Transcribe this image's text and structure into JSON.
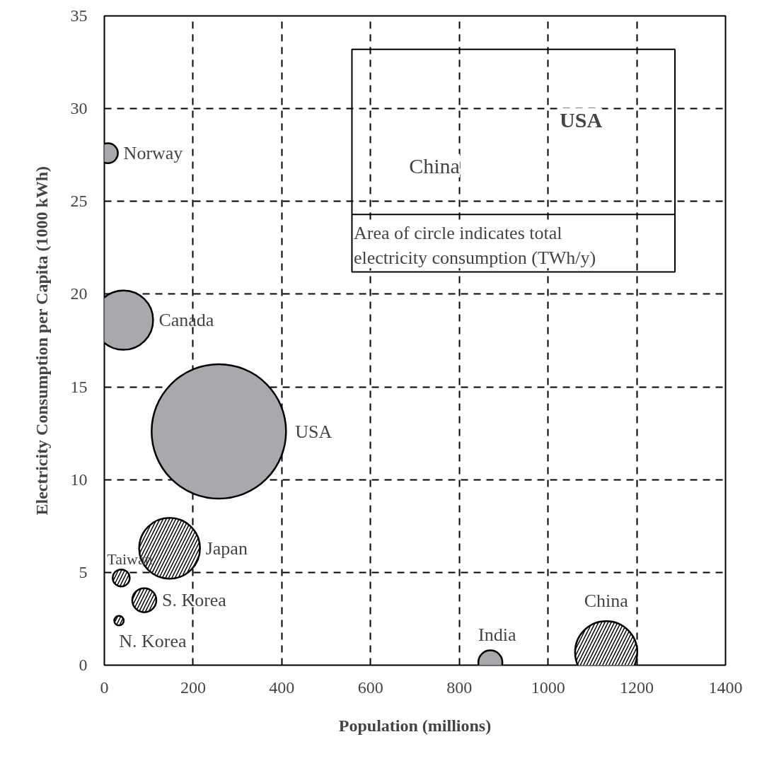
{
  "chart_data": {
    "type": "bubble",
    "xlabel": "Population (millions)",
    "ylabel": "Electricity Consumption per Capita (1000 kWh)",
    "xlim": [
      0,
      1400
    ],
    "ylim": [
      0,
      35
    ],
    "xticks": [
      0,
      200,
      400,
      600,
      800,
      1000,
      1200,
      1400
    ],
    "yticks": [
      0,
      5,
      10,
      15,
      20,
      25,
      30,
      35
    ],
    "grid": true,
    "series": [
      {
        "color": "#a7a9ac",
        "x": [
          8,
          43,
          258,
          870
        ],
        "values": [
          27.6,
          18.6,
          12.6,
          0.15
        ],
        "sizes": [
          0.022,
          0.195,
          1,
          0.032
        ]
      },
      {
        "color": "#ffffff",
        "x": [
          147,
          38,
          90,
          33,
          1131
        ],
        "values": [
          6.3,
          4.7,
          3.5,
          2.4,
          0.7
        ],
        "sizes": [
          0.205,
          0.016,
          0.032,
          0.005,
          0.214
        ]
      }
    ],
    "annotations": [
      "China",
      "USA",
      "Area of circle indicates total electricity consumption (TWh/y)",
      "USA",
      {
        "text": "Norway",
        "x": 8,
        "y": 27.6
      },
      {
        "text": "Canada",
        "x": 43,
        "y": 18.6
      },
      {
        "text": "India",
        "x": 870,
        "y": 0.15
      },
      {
        "text": "Japan",
        "x": 147,
        "y": 6.3
      },
      {
        "text": "Taiwan",
        "x": 38,
        "y": 4.7
      },
      {
        "text": "S. Korea",
        "x": 90,
        "y": 3.5
      },
      {
        "text": "N. Korea",
        "x": 33,
        "y": 2.4
      },
      {
        "text": "China",
        "x": 1131,
        "y": 0.7
      }
    ]
  }
}
